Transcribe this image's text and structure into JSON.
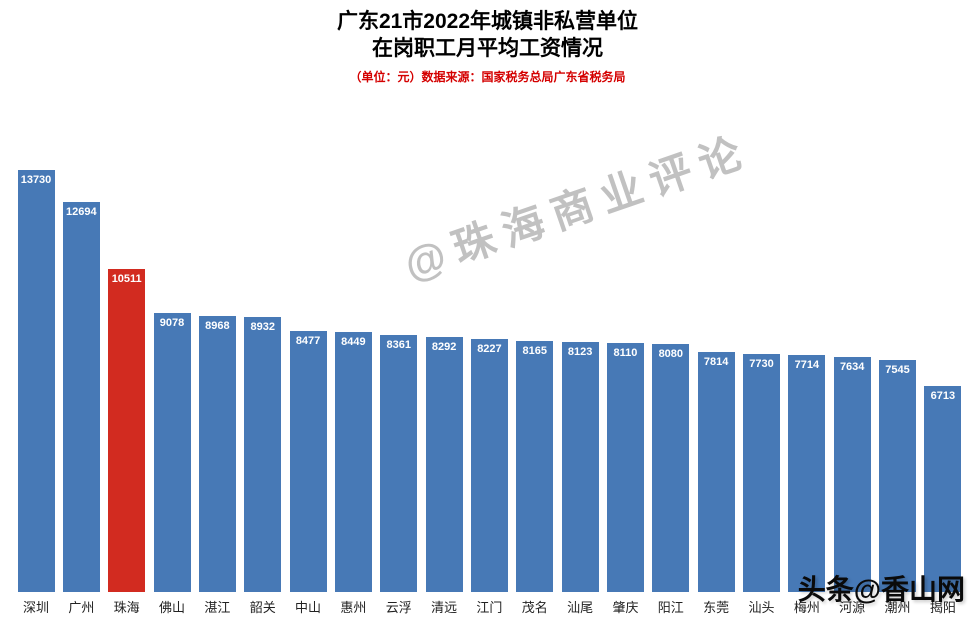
{
  "title": {
    "line1": "广东21市2022年城镇非私营单位",
    "line2": "在岗职工月平均工资情况",
    "subtitle": "（单位：元）数据来源：国家税务总局广东省税务局"
  },
  "watermark": "@珠海商业评论",
  "footer": "头条@香山网",
  "colors": {
    "bar": "#4779b6",
    "highlight": "#d22b20",
    "subtitle_red": "#d40000"
  },
  "chart_data": {
    "type": "bar",
    "title": "广东21市2022年城镇非私营单位在岗职工月平均工资情况",
    "unit": "元",
    "source": "国家税务总局广东省税务局",
    "categories": [
      "深圳",
      "广州",
      "珠海",
      "佛山",
      "湛江",
      "韶关",
      "中山",
      "惠州",
      "云浮",
      "清远",
      "江门",
      "茂名",
      "汕尾",
      "肇庆",
      "阳江",
      "东莞",
      "汕头",
      "梅州",
      "河源",
      "潮州",
      "揭阳"
    ],
    "values": [
      13730,
      12694,
      10511,
      9078,
      8968,
      8932,
      8477,
      8449,
      8361,
      8292,
      8227,
      8165,
      8123,
      8110,
      8080,
      7814,
      7730,
      7714,
      7634,
      7545,
      6713
    ],
    "highlight_index": 2,
    "highlight_category": "珠海",
    "bar_color": "#4779b6",
    "highlight_color": "#d22b20",
    "value_labels": "inside-top, white",
    "ylim": [
      0,
      14000
    ],
    "grid": false,
    "legend": false
  }
}
